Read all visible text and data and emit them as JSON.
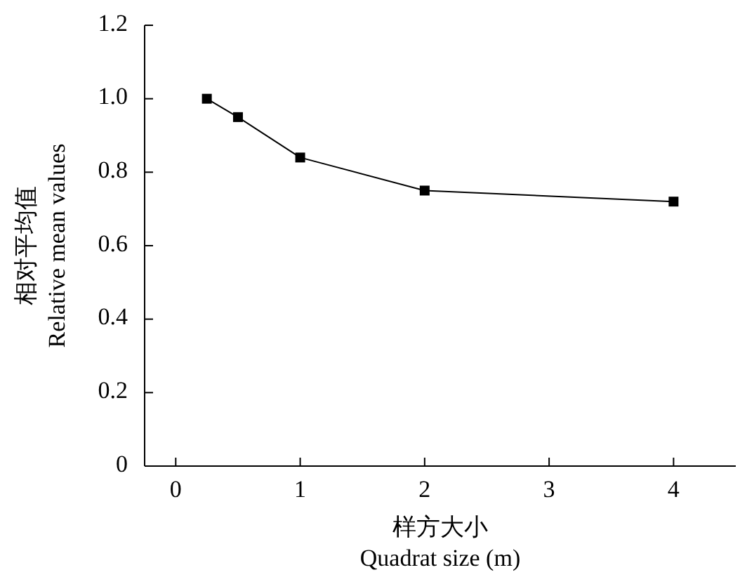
{
  "chart_data": {
    "type": "line",
    "xlabel": "样方大小\nQuadrat size (m)",
    "ylabel": "相对平均值\nRelative mean values",
    "x": [
      0.25,
      0.5,
      1,
      2,
      4
    ],
    "series": [
      {
        "color": "#000000",
        "values": [
          1.0,
          0.95,
          0.84,
          0.75,
          0.72
        ]
      }
    ],
    "xlim": [
      -0.25,
      4.5
    ],
    "xticks": [
      0,
      1,
      2,
      3,
      4
    ],
    "ylim": [
      0,
      1.2
    ],
    "yticks": [
      0,
      0.2,
      0.4,
      0.6,
      0.8,
      {
        "value": 1,
        "label": "1.0"
      },
      1.2
    ],
    "marker": "square",
    "line_style": "solid",
    "grid": false
  }
}
